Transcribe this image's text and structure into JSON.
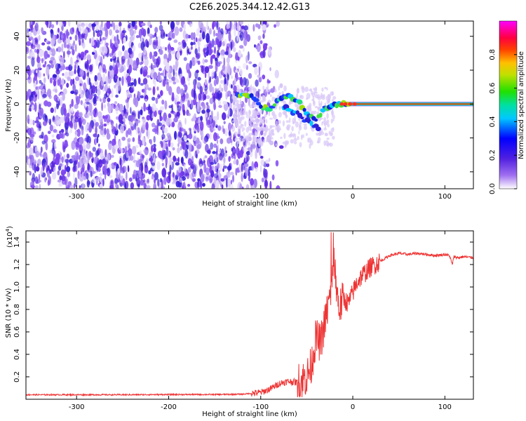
{
  "title": "C2E6.2025.344.12.42.G13",
  "chart_data": [
    {
      "type": "heatmap",
      "xlabel": "Height of straight line (km)",
      "ylabel": "Frequency (Hz)",
      "xlim": [
        -355,
        131
      ],
      "ylim": [
        -50,
        49
      ],
      "x_ticks": [
        -300,
        -200,
        -100,
        0,
        100
      ],
      "y_ticks": [
        -40,
        -20,
        0,
        20,
        40
      ],
      "colorbar": {
        "label": "Normalized spectral amplitude",
        "range": [
          0,
          1
        ],
        "ticks": [
          "0.0",
          "0.2",
          "0.4",
          "0.6",
          "0.8"
        ],
        "colors": [
          "#ffffff",
          "#cbb6f5",
          "#7b3ff0",
          "#3a20d8",
          "#0000ff",
          "#00c8ff",
          "#00e070",
          "#80e000",
          "#ffe000",
          "#ff8000",
          "#ff0000",
          "#ff00ff"
        ]
      },
      "features": {
        "noise_region_x": [
          -355,
          -110
        ],
        "noise_fade_x": [
          -130,
          -75
        ],
        "ridge_points": [
          {
            "x": -125,
            "y": 6
          },
          {
            "x": -110,
            "y": 5
          },
          {
            "x": -100,
            "y": -2
          },
          {
            "x": -90,
            "y": -3
          },
          {
            "x": -80,
            "y": 3
          },
          {
            "x": -70,
            "y": 5
          },
          {
            "x": -60,
            "y": 2
          },
          {
            "x": -50,
            "y": -5
          },
          {
            "x": -40,
            "y": -10
          },
          {
            "x": -30,
            "y": -2
          },
          {
            "x": -20,
            "y": 0
          },
          {
            "x": 0,
            "y": 0
          },
          {
            "x": 131,
            "y": 0
          }
        ],
        "lower_branch_points": [
          {
            "x": -75,
            "y": -2
          },
          {
            "x": -60,
            "y": -6
          },
          {
            "x": -45,
            "y": -12
          },
          {
            "x": -35,
            "y": -15
          }
        ],
        "steady_line_x": [
          -20,
          131
        ],
        "steady_line_y": 0
      }
    },
    {
      "type": "line",
      "xlabel": "Height of straight line (km)",
      "ylabel": "SNR (10 * v/v)",
      "y_multiplier": "(x10",
      "y_multiplier_exp": "4",
      "y_multiplier_close": ")",
      "xlim": [
        -355,
        131
      ],
      "ylim": [
        0,
        15000
      ],
      "x_ticks": [
        -300,
        -200,
        -100,
        0,
        100
      ],
      "y_ticks": [
        0.2,
        0.4,
        0.6,
        0.8,
        1.0,
        1.2,
        1.4
      ],
      "series": [
        {
          "color": "#ee3333",
          "x": [
            -355,
            -300,
            -250,
            -200,
            -150,
            -120,
            -100,
            -90,
            -80,
            -70,
            -60,
            -50,
            -45,
            -40,
            -35,
            -30,
            -25,
            -20,
            -15,
            -10,
            -5,
            0,
            5,
            10,
            20,
            30,
            40,
            50,
            60,
            70,
            80,
            90,
            100,
            105,
            108,
            110,
            115,
            120,
            131
          ],
          "y": [
            400,
            400,
            400,
            420,
            420,
            450,
            600,
            900,
            1400,
            1600,
            1500,
            2000,
            3000,
            5500,
            5000,
            7000,
            9000,
            12000,
            8000,
            9000,
            8500,
            9500,
            10500,
            11000,
            11800,
            12300,
            12800,
            13000,
            12900,
            13000,
            12900,
            12800,
            12900,
            12800,
            12000,
            12700,
            12600,
            12700,
            12600
          ]
        }
      ]
    }
  ]
}
